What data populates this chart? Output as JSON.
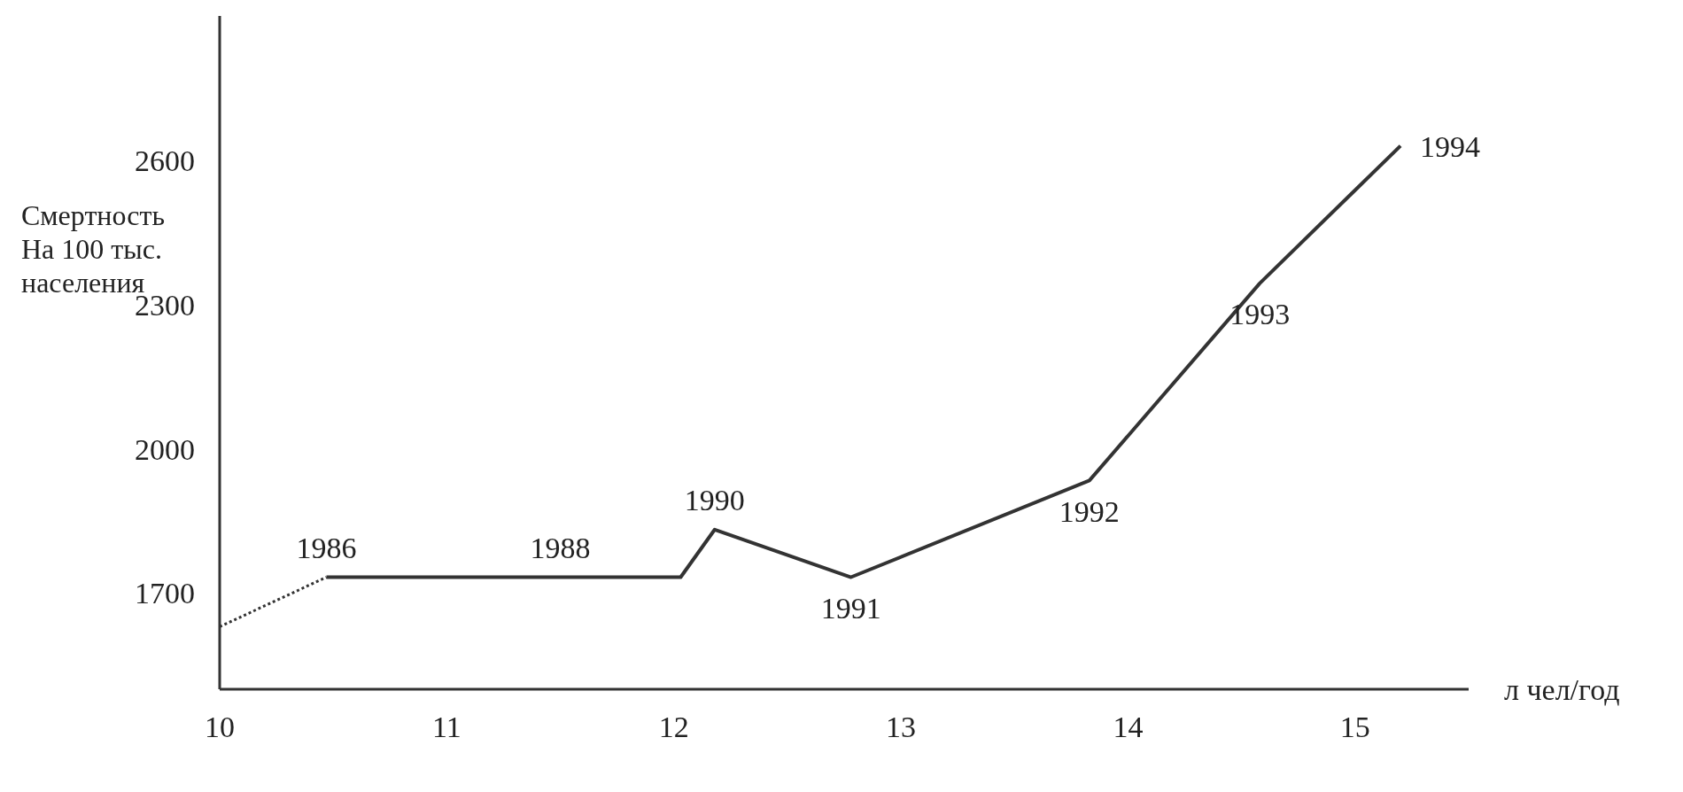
{
  "chart_data": {
    "type": "line",
    "xlabel": "л чел/год",
    "ylabel": "Смертность\nНа 100 тыс.\nнаселения",
    "series": [
      {
        "color": "#333333",
        "line_style": "dotted",
        "x": [
          10,
          10.47
        ],
        "values": [
          1630,
          1733
        ]
      },
      {
        "color": "#333333",
        "line_style": "solid",
        "x": [
          10.47,
          11.5,
          12.03,
          12.18,
          12.78,
          13.83,
          14.58,
          15.2
        ],
        "values": [
          1733,
          1733,
          1733,
          1832,
          1733,
          1934,
          2344,
          2630
        ]
      }
    ],
    "annotations": [
      {
        "text": "1986",
        "x": 10.47,
        "y": 1733
      },
      {
        "text": "1988",
        "x": 11.5,
        "y": 1733
      },
      {
        "text": "1990",
        "x": 12.18,
        "y": 1832
      },
      {
        "text": "1991",
        "x": 12.78,
        "y": 1733
      },
      {
        "text": "1992",
        "x": 13.83,
        "y": 1934
      },
      {
        "text": "1993",
        "x": 14.58,
        "y": 2344
      },
      {
        "text": "1994",
        "x": 15.2,
        "y": 2630
      }
    ],
    "xlim": [
      10,
      15.5
    ],
    "xticks": [
      10,
      11,
      12,
      13,
      14,
      15
    ],
    "ylim": [
      1500,
      2900
    ],
    "yticks": [
      1700,
      2000,
      2300,
      2600
    ],
    "marker": "none",
    "grid": false
  }
}
